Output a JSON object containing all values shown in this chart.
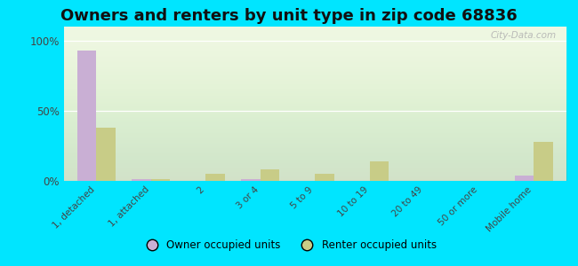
{
  "title": "Owners and renters by unit type in zip code 68836",
  "categories": [
    "1, detached",
    "1, attached",
    "2",
    "3 or 4",
    "5 to 9",
    "10 to 19",
    "20 to 49",
    "50 or more",
    "Mobile home"
  ],
  "owner_values": [
    93,
    1,
    0,
    1,
    0,
    0,
    0,
    0,
    4
  ],
  "renter_values": [
    38,
    1,
    5,
    8,
    5,
    14,
    0,
    0,
    28
  ],
  "owner_color": "#c9afd4",
  "renter_color": "#c8cc87",
  "bg_outer": "#00e5ff",
  "yticks": [
    0,
    50,
    100
  ],
  "ylim": [
    0,
    110
  ],
  "title_fontsize": 13,
  "legend_owner": "Owner occupied units",
  "legend_renter": "Renter occupied units",
  "watermark": "City-Data.com",
  "plot_bg_color": "#eef7e0"
}
